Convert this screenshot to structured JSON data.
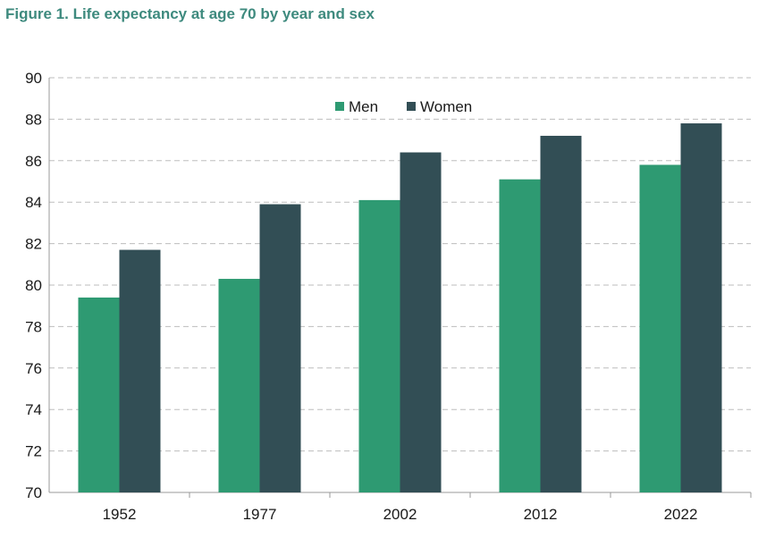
{
  "figure_title": "Figure 1. Life expectancy at age 70 by year and sex",
  "colors": {
    "Men": "#2e9a72",
    "Women": "#324e55",
    "title": "#3e8a7e",
    "grid": "#bdbdbd"
  },
  "chart_data": {
    "type": "bar",
    "title": "Figure 1. Life expectancy at age 70 by year and sex",
    "xlabel": "",
    "ylabel": "",
    "categories": [
      "1952",
      "1977",
      "2002",
      "2012",
      "2022"
    ],
    "series": [
      {
        "name": "Men",
        "values": [
          79.4,
          80.3,
          84.1,
          85.1,
          85.8
        ]
      },
      {
        "name": "Women",
        "values": [
          81.7,
          83.9,
          86.4,
          87.2,
          87.8
        ]
      }
    ],
    "ylim": [
      70,
      90
    ],
    "yticks": [
      "70",
      "72",
      "74",
      "76",
      "78",
      "80",
      "82",
      "84",
      "86",
      "88",
      "90"
    ],
    "grid": true,
    "legend_position": "top-center"
  }
}
